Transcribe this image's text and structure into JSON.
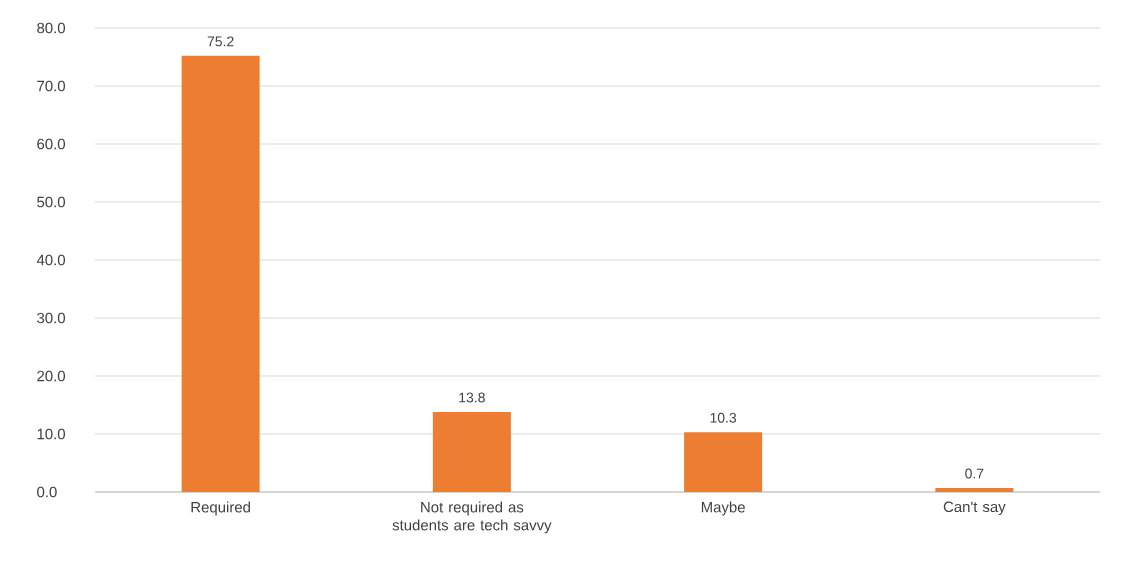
{
  "chart_data": {
    "type": "bar",
    "categories": [
      "Required",
      "Not required as students are tech savvy",
      "Maybe",
      "Can't say"
    ],
    "values": [
      75.2,
      13.8,
      10.3,
      0.7
    ],
    "color": "#ed7d31",
    "ylim": [
      0,
      80
    ],
    "yticks": [
      {
        "value": 0,
        "label": "0.0"
      },
      {
        "value": 10,
        "label": "10.0"
      },
      {
        "value": 20,
        "label": "20.0"
      },
      {
        "value": 30,
        "label": "30.0"
      },
      {
        "value": 40,
        "label": "40.0"
      },
      {
        "value": 50,
        "label": "50.0"
      },
      {
        "value": 60,
        "label": "60.0"
      },
      {
        "value": 70,
        "label": "70.0"
      },
      {
        "value": 80,
        "label": "80.0"
      }
    ],
    "grid": "y",
    "data_labels": true
  }
}
